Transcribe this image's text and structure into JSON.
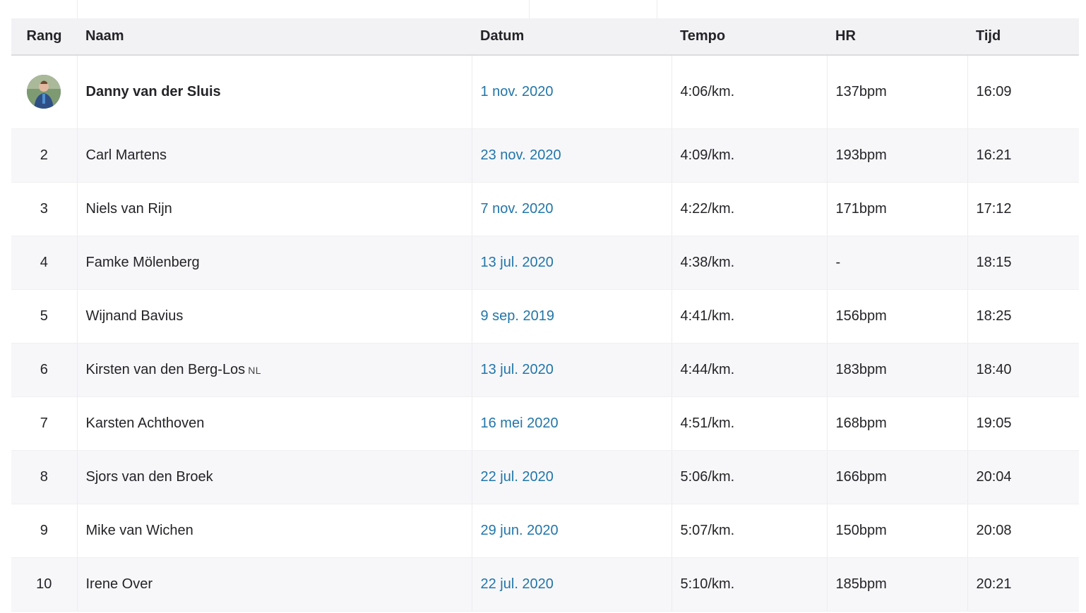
{
  "table": {
    "headers": {
      "rang": "Rang",
      "naam": "Naam",
      "datum": "Datum",
      "tempo": "Tempo",
      "hr": "HR",
      "tijd": "Tijd"
    },
    "rows": [
      {
        "rang": "",
        "naam": "Danny van der Sluis",
        "datum": "1 nov. 2020",
        "tempo": "4:06/km.",
        "hr": "137bpm",
        "tijd": "16:09",
        "flag": "",
        "avatar": "runner-avatar-icon"
      },
      {
        "rang": "2",
        "naam": "Carl Martens",
        "datum": "23 nov. 2020",
        "tempo": "4:09/km.",
        "hr": "193bpm",
        "tijd": "16:21",
        "flag": ""
      },
      {
        "rang": "3",
        "naam": "Niels van Rijn",
        "datum": "7 nov. 2020",
        "tempo": "4:22/km.",
        "hr": "171bpm",
        "tijd": "17:12",
        "flag": ""
      },
      {
        "rang": "4",
        "naam": "Famke Mölenberg",
        "datum": "13 jul. 2020",
        "tempo": "4:38/km.",
        "hr": "-",
        "tijd": "18:15",
        "flag": ""
      },
      {
        "rang": "5",
        "naam": "Wijnand Bavius",
        "datum": "9 sep. 2019",
        "tempo": "4:41/km.",
        "hr": "156bpm",
        "tijd": "18:25",
        "flag": ""
      },
      {
        "rang": "6",
        "naam": "Kirsten van den Berg-Los",
        "datum": "13 jul. 2020",
        "tempo": "4:44/km.",
        "hr": "183bpm",
        "tijd": "18:40",
        "flag": "NL"
      },
      {
        "rang": "7",
        "naam": "Karsten Achthoven",
        "datum": "16 mei 2020",
        "tempo": "4:51/km.",
        "hr": "168bpm",
        "tijd": "19:05",
        "flag": ""
      },
      {
        "rang": "8",
        "naam": "Sjors van den Broek",
        "datum": "22 jul. 2020",
        "tempo": "5:06/km.",
        "hr": "166bpm",
        "tijd": "20:04",
        "flag": ""
      },
      {
        "rang": "9",
        "naam": "Mike van Wichen",
        "datum": "29 jun. 2020",
        "tempo": "5:07/km.",
        "hr": "150bpm",
        "tijd": "20:08",
        "flag": ""
      },
      {
        "rang": "10",
        "naam": "Irene Over",
        "datum": "22 jul. 2020",
        "tempo": "5:10/km.",
        "hr": "185bpm",
        "tijd": "20:21",
        "flag": ""
      }
    ]
  },
  "colors": {
    "link": "#2276a8",
    "header_bg": "#f2f2f5",
    "stripe_bg": "#f7f7fa",
    "text": "#242428"
  }
}
